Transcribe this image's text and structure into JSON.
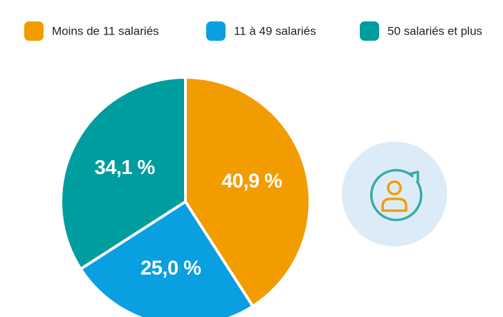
{
  "chart_data": {
    "type": "pie",
    "categories": [
      "Moins de 11 salariés",
      "11 à 49 salariés",
      "50 salariés et plus"
    ],
    "values": [
      40.9,
      25.0,
      34.1
    ],
    "value_labels": [
      "40,9 %",
      "25,0 %",
      "34,1 %"
    ],
    "colors": [
      "#f39c00",
      "#0a9fe0",
      "#009d9e"
    ],
    "legend": "top"
  }
}
